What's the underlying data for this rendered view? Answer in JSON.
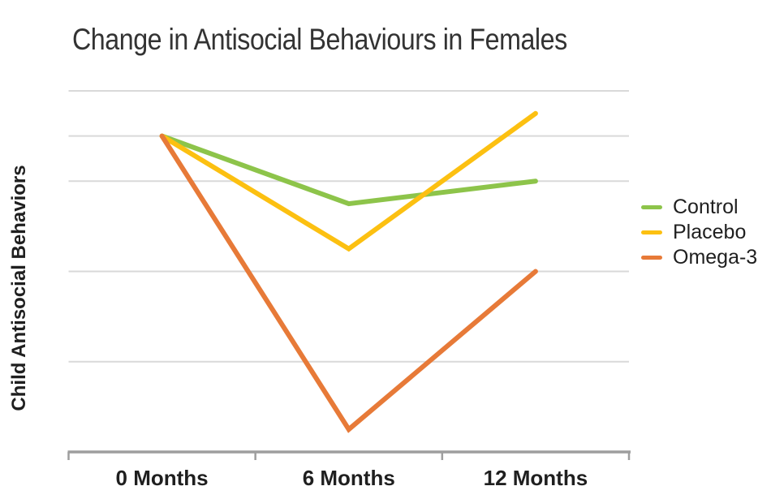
{
  "title": "Change in Antisocial Behaviours in Females",
  "colors": {
    "gridline": "#d9d9d9",
    "axis": "#9e9e9e",
    "text": "#1f1f1f"
  },
  "chart_data": {
    "type": "line",
    "title": "Change in Antisocial Behaviours in Females",
    "xlabel": "",
    "ylabel": "Child Antisocial Behaviors",
    "categories": [
      "0 Months",
      "6 Months",
      "12 Months"
    ],
    "series": [
      {
        "name": "Control",
        "color": "#8dc44a",
        "values": [
          0,
          -1.5,
          -1
        ]
      },
      {
        "name": "Placebo",
        "color": "#fcc011",
        "values": [
          0,
          -2.5,
          0.5
        ]
      },
      {
        "name": "Omega-3",
        "color": "#e77a38",
        "values": [
          0,
          -6.5,
          -3
        ]
      }
    ],
    "value_units": "gridline units relative to the shared starting level (y axis has no numeric tick labels)",
    "gridline_values": [
      1,
      0,
      -1,
      -3,
      -5
    ],
    "ylim": [
      -7,
      1
    ],
    "grid": true,
    "legend_position": "right"
  }
}
